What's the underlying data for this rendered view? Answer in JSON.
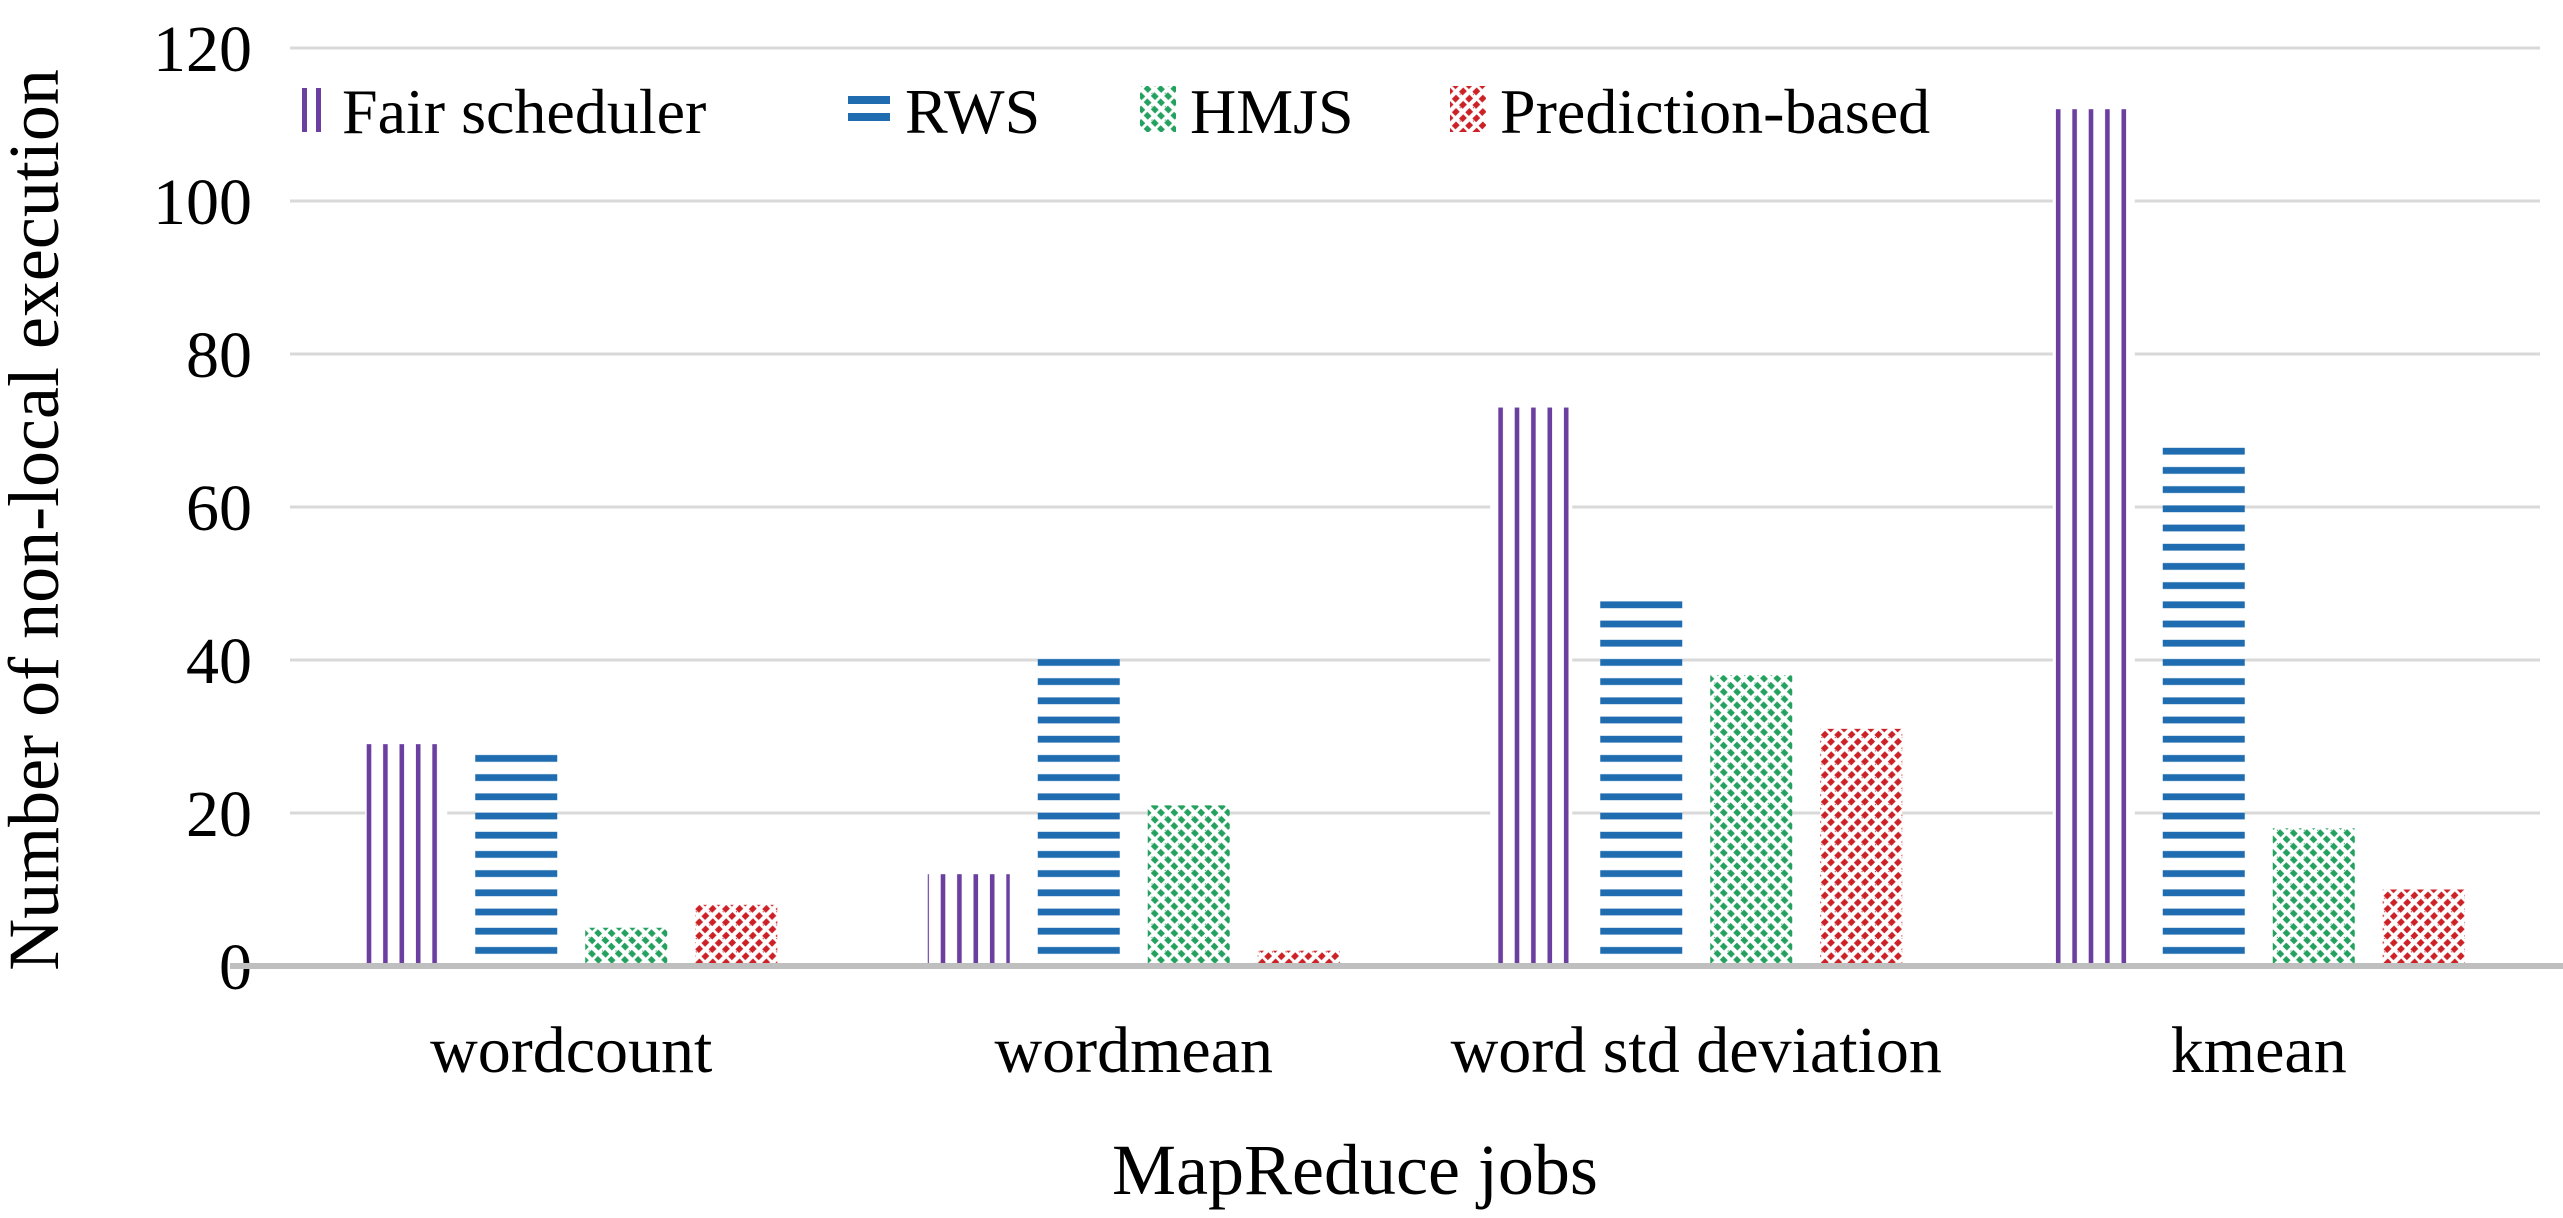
{
  "chart_data": {
    "type": "bar",
    "title": "",
    "xlabel": "MapReduce jobs",
    "ylabel": "Number of non-local execution",
    "categories": [
      "wordcount",
      "wordmean",
      "word std deviation",
      "kmean"
    ],
    "series": [
      {
        "name": "Fair scheduler",
        "color": "#6B3FA0",
        "pattern": "vertical-stripes",
        "values": [
          29,
          12,
          73,
          112
        ]
      },
      {
        "name": "RWS",
        "color": "#1F6CB0",
        "pattern": "horizontal-stripes",
        "values": [
          28,
          41,
          49,
          69
        ]
      },
      {
        "name": "HMJS",
        "color": "#24A15F",
        "pattern": "diagonal-down-dashed",
        "values": [
          5,
          21,
          38,
          18
        ]
      },
      {
        "name": "Prediction-based",
        "color": "#CC2127",
        "pattern": "diagonal-up-dashed",
        "values": [
          8,
          2,
          31,
          10
        ]
      }
    ],
    "ylim": [
      0,
      120
    ],
    "yticks": [
      0,
      20,
      40,
      60,
      80,
      100,
      120
    ],
    "grid": true,
    "legend_position": "top-inside",
    "gridline_color": "#D9D9D9",
    "baseline_color": "#BFBFBF",
    "text_color": "#000000",
    "background": "#FFFFFF"
  }
}
